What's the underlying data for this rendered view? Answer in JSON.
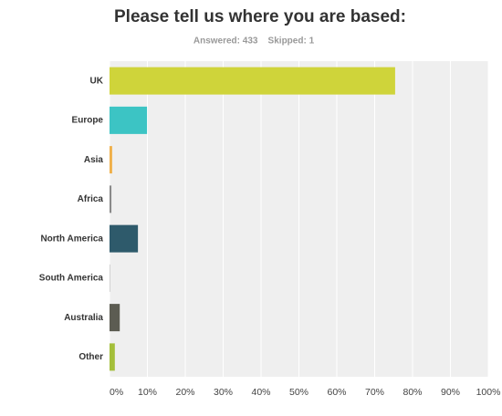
{
  "chart_data": {
    "type": "bar",
    "orientation": "horizontal",
    "title": "Please tell us where you are based:",
    "subtitle": "Answered: 433    Skipped: 1",
    "categories": [
      "UK",
      "Europe",
      "Asia",
      "Africa",
      "North America",
      "South America",
      "Australia",
      "Other"
    ],
    "values": [
      75.4,
      9.9,
      0.7,
      0.5,
      7.5,
      0.2,
      2.7,
      1.4
    ],
    "colors": [
      "#cfd43a",
      "#3cc4c4",
      "#f0b04a",
      "#8a8a8a",
      "#2e5a6b",
      "#cccccc",
      "#5c5c52",
      "#a4bf3a"
    ],
    "xlim": [
      0,
      100
    ],
    "xticks": [
      {
        "value": 0,
        "label": "0%"
      },
      {
        "value": 10,
        "label": "10%"
      },
      {
        "value": 20,
        "label": "20%"
      },
      {
        "value": 30,
        "label": "30%"
      },
      {
        "value": 40,
        "label": "40%"
      },
      {
        "value": 50,
        "label": "50%"
      },
      {
        "value": 60,
        "label": "60%"
      },
      {
        "value": 70,
        "label": "70%"
      },
      {
        "value": 80,
        "label": "80%"
      },
      {
        "value": 90,
        "label": "90%"
      },
      {
        "value": 100,
        "label": "100%"
      }
    ],
    "grid": true
  }
}
